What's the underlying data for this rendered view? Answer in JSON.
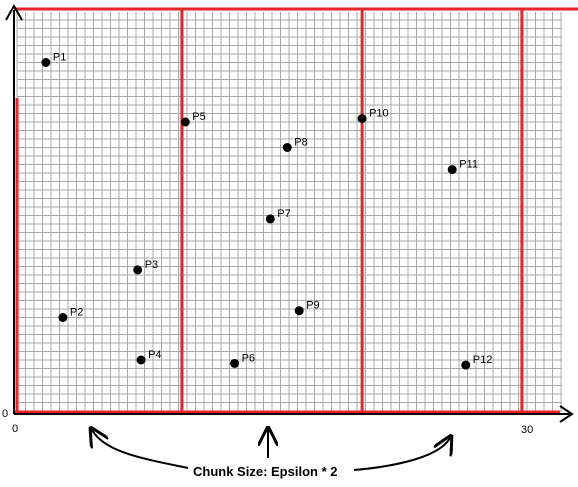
{
  "axes": {
    "x_min_label": "0",
    "x_max_label": "30",
    "y_origin_label": "0"
  },
  "x_range": [
    0,
    30
  ],
  "points": [
    {
      "label": "P1",
      "x": 1.7,
      "y": 20.5
    },
    {
      "label": "P2",
      "x": 2.7,
      "y": 5.5
    },
    {
      "label": "P3",
      "x": 7.1,
      "y": 8.3
    },
    {
      "label": "P4",
      "x": 7.3,
      "y": 3.0
    },
    {
      "label": "P5",
      "x": 9.9,
      "y": 17.0
    },
    {
      "label": "P6",
      "x": 12.8,
      "y": 2.8
    },
    {
      "label": "P7",
      "x": 14.9,
      "y": 11.3
    },
    {
      "label": "P8",
      "x": 15.9,
      "y": 15.5
    },
    {
      "label": "P9",
      "x": 16.6,
      "y": 5.9
    },
    {
      "label": "P10",
      "x": 20.3,
      "y": 17.2
    },
    {
      "label": "P11",
      "x": 25.6,
      "y": 14.2
    },
    {
      "label": "P12",
      "x": 26.4,
      "y": 2.7
    }
  ],
  "chunk_boundaries_x": [
    9.7,
    20.3,
    29.7
  ],
  "caption": "Chunk Size: Epsilon * 2",
  "colors": {
    "grid": "#a8a8a8",
    "chunk_lines": "#e8232b",
    "axes": "#000000",
    "points": "#000000"
  }
}
